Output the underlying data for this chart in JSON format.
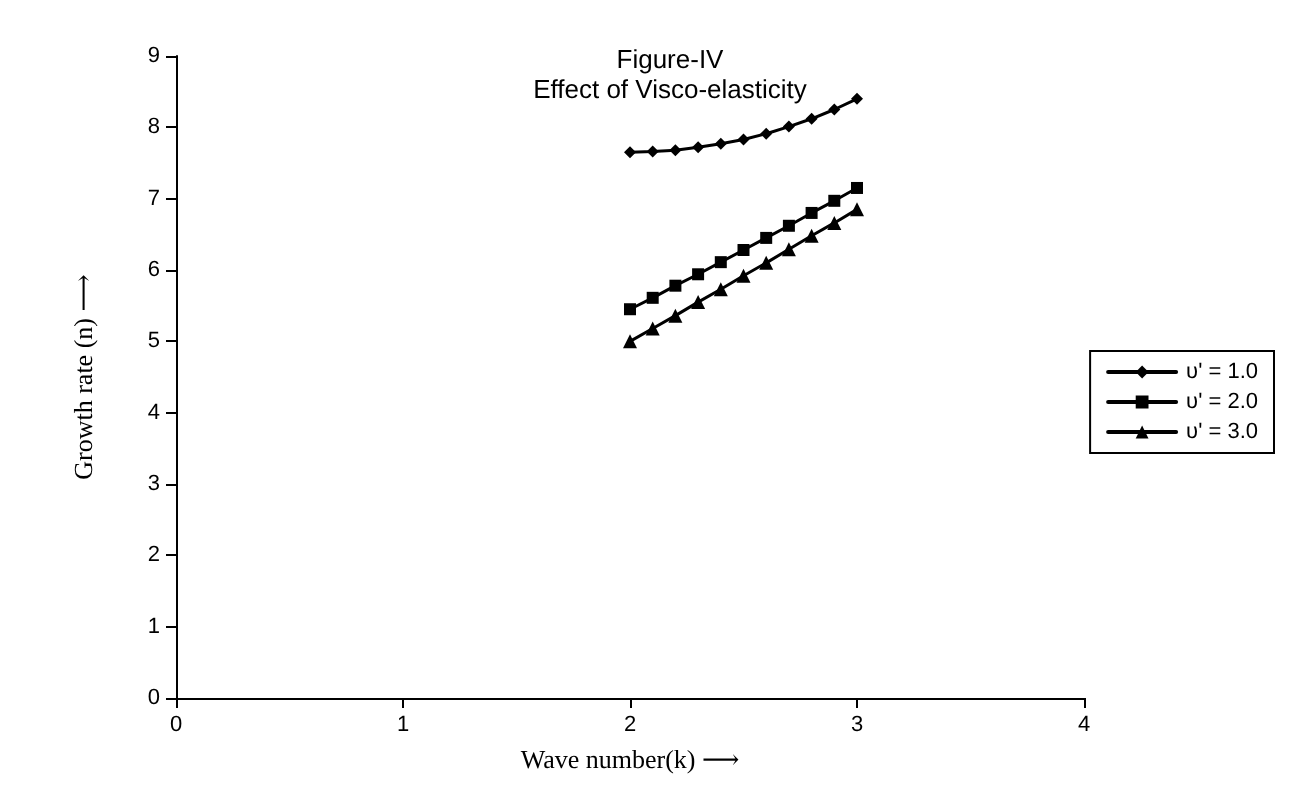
{
  "chart_data": {
    "type": "line",
    "title": "Figure-IV",
    "subtitle": "Effect of Visco-elasticity",
    "xlabel": "Wave number(k) ⟶",
    "ylabel": "Growth rate (n) ⟶",
    "x": [
      2,
      2.1,
      2.2,
      2.3,
      2.4,
      2.5,
      2.6,
      2.7,
      2.8,
      2.9,
      3
    ],
    "series": [
      {
        "name": "υ' = 1.0",
        "color": "#000000",
        "marker": "diamond",
        "values": [
          7.65,
          7.66,
          7.68,
          7.72,
          7.77,
          7.83,
          7.91,
          8.01,
          8.12,
          8.25,
          8.4
        ]
      },
      {
        "name": "υ' = 2.0",
        "color": "#000000",
        "marker": "square",
        "values": [
          5.45,
          5.61,
          5.78,
          5.94,
          6.11,
          6.28,
          6.45,
          6.62,
          6.8,
          6.97,
          7.15
        ]
      },
      {
        "name": "υ' = 3.0",
        "color": "#000000",
        "marker": "triangle",
        "values": [
          5.0,
          5.18,
          5.36,
          5.55,
          5.73,
          5.92,
          6.1,
          6.29,
          6.48,
          6.66,
          6.85
        ]
      }
    ],
    "xlim": [
      0,
      4
    ],
    "xticks": [
      0,
      1,
      2,
      3,
      4
    ],
    "ylim": [
      0,
      9
    ],
    "yticks": [
      0,
      1,
      2,
      3,
      4,
      5,
      6,
      7,
      8,
      9
    ],
    "grid": false,
    "legend": "right",
    "line_style": "solid"
  }
}
